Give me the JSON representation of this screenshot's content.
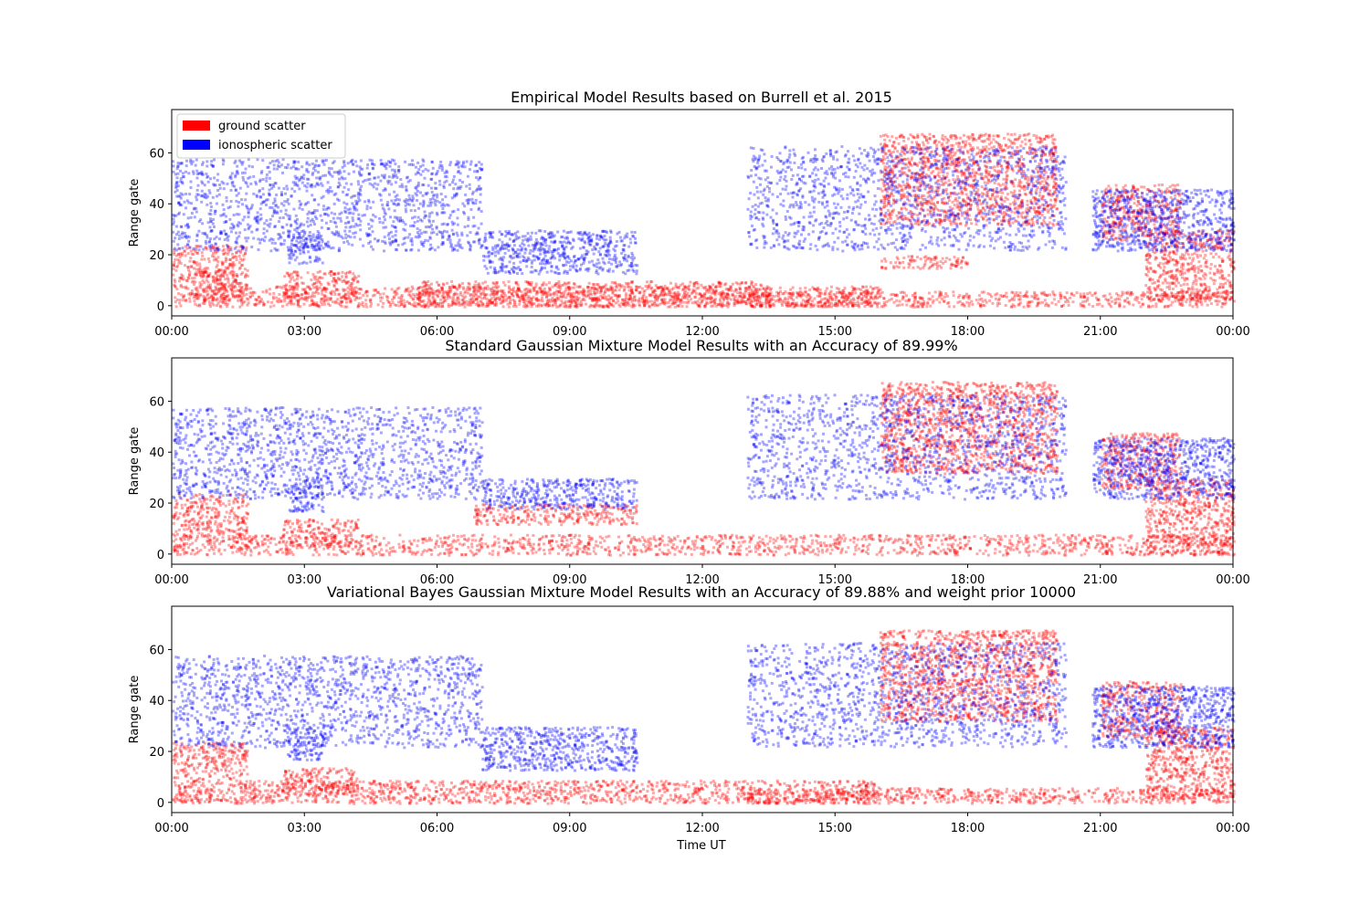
{
  "figure": {
    "xlabel": "Time UT",
    "ylabel": "Range gate",
    "colors": {
      "ground": "#ff0000",
      "ionospheric": "#0000ff"
    },
    "legend": {
      "placement": "top-left",
      "entries": [
        "ground scatter",
        "ionospheric scatter"
      ]
    }
  },
  "chart_data": [
    {
      "type": "scatter",
      "title": "Empirical Model Results based on Burrell et al. 2015",
      "xlabel": "",
      "ylabel": "Range gate",
      "xlim": [
        0,
        24
      ],
      "ylim": [
        -4,
        77
      ],
      "xticks": [
        "00:00",
        "03:00",
        "06:00",
        "09:00",
        "12:00",
        "15:00",
        "18:00",
        "21:00",
        "00:00"
      ],
      "yticks": [
        "0",
        "20",
        "40",
        "60"
      ],
      "legend": [
        "ground scatter",
        "ionospheric scatter"
      ],
      "series": [
        {
          "name": "ground scatter",
          "color": "#ff0000",
          "regions": [
            {
              "x": [
                0.0,
                1.7
              ],
              "y": [
                0,
                24
              ]
            },
            {
              "x": [
                0.5,
                1.5
              ],
              "y": [
                2,
                14
              ]
            },
            {
              "x": [
                2.5,
                4.2
              ],
              "y": [
                3,
                14
              ]
            },
            {
              "x": [
                1.5,
                16.0
              ],
              "y": [
                0,
                8
              ]
            },
            {
              "x": [
                5.5,
                13.5
              ],
              "y": [
                0,
                10
              ]
            },
            {
              "x": [
                13.0,
                24.0
              ],
              "y": [
                0,
                6
              ]
            },
            {
              "x": [
                16.0,
                20.0
              ],
              "y": [
                32,
                68
              ]
            },
            {
              "x": [
                16.0,
                18.0
              ],
              "y": [
                15,
                20
              ]
            },
            {
              "x": [
                21.0,
                22.8
              ],
              "y": [
                26,
                48
              ]
            },
            {
              "x": [
                22.0,
                24.0
              ],
              "y": [
                2,
                30
              ]
            }
          ]
        },
        {
          "name": "ionospheric scatter",
          "color": "#0000ff",
          "regions": [
            {
              "x": [
                0.0,
                7.0
              ],
              "y": [
                22,
                58
              ]
            },
            {
              "x": [
                2.6,
                3.4
              ],
              "y": [
                17,
                30
              ]
            },
            {
              "x": [
                7.0,
                10.5
              ],
              "y": [
                13,
                30
              ]
            },
            {
              "x": [
                13.0,
                20.2
              ],
              "y": [
                22,
                63
              ]
            },
            {
              "x": [
                20.8,
                24.0
              ],
              "y": [
                22,
                46
              ]
            }
          ]
        }
      ]
    },
    {
      "type": "scatter",
      "title": "Standard Gaussian Mixture Model Results with an Accuracy of 89.99%",
      "xlabel": "",
      "ylabel": "Range gate",
      "xlim": [
        0,
        24
      ],
      "ylim": [
        -4,
        77
      ],
      "xticks": [
        "00:00",
        "03:00",
        "06:00",
        "09:00",
        "12:00",
        "15:00",
        "18:00",
        "21:00",
        "00:00"
      ],
      "yticks": [
        "0",
        "20",
        "40",
        "60"
      ],
      "series": [
        {
          "name": "ground scatter",
          "color": "#ff0000",
          "regions": [
            {
              "x": [
                0.0,
                1.7
              ],
              "y": [
                0,
                24
              ]
            },
            {
              "x": [
                2.5,
                4.2
              ],
              "y": [
                3,
                14
              ]
            },
            {
              "x": [
                1.5,
                24.0
              ],
              "y": [
                0,
                8
              ]
            },
            {
              "x": [
                6.8,
                10.5
              ],
              "y": [
                12,
                20
              ]
            },
            {
              "x": [
                16.0,
                20.0
              ],
              "y": [
                32,
                68
              ]
            },
            {
              "x": [
                21.0,
                22.8
              ],
              "y": [
                26,
                48
              ]
            },
            {
              "x": [
                22.0,
                24.0
              ],
              "y": [
                0,
                30
              ]
            }
          ]
        },
        {
          "name": "ionospheric scatter",
          "color": "#0000ff",
          "regions": [
            {
              "x": [
                0.0,
                7.0
              ],
              "y": [
                22,
                58
              ]
            },
            {
              "x": [
                2.6,
                3.4
              ],
              "y": [
                17,
                30
              ]
            },
            {
              "x": [
                7.0,
                10.5
              ],
              "y": [
                18,
                30
              ]
            },
            {
              "x": [
                13.0,
                20.2
              ],
              "y": [
                22,
                63
              ]
            },
            {
              "x": [
                20.8,
                24.0
              ],
              "y": [
                22,
                46
              ]
            }
          ]
        }
      ]
    },
    {
      "type": "scatter",
      "title": "Variational Bayes Gaussian Mixture Model Results with an Accuracy of 89.88% and weight prior 10000",
      "xlabel": "Time UT",
      "ylabel": "Range gate",
      "xlim": [
        0,
        24
      ],
      "ylim": [
        -4,
        77
      ],
      "xticks": [
        "00:00",
        "03:00",
        "06:00",
        "09:00",
        "12:00",
        "15:00",
        "18:00",
        "21:00",
        "00:00"
      ],
      "yticks": [
        "0",
        "20",
        "40",
        "60"
      ],
      "series": [
        {
          "name": "ground scatter",
          "color": "#ff0000",
          "regions": [
            {
              "x": [
                0.0,
                1.7
              ],
              "y": [
                0,
                24
              ]
            },
            {
              "x": [
                2.5,
                4.2
              ],
              "y": [
                3,
                14
              ]
            },
            {
              "x": [
                1.5,
                16.0
              ],
              "y": [
                0,
                9
              ]
            },
            {
              "x": [
                13.0,
                24.0
              ],
              "y": [
                0,
                6
              ]
            },
            {
              "x": [
                16.0,
                20.0
              ],
              "y": [
                32,
                68
              ]
            },
            {
              "x": [
                21.0,
                22.8
              ],
              "y": [
                26,
                48
              ]
            },
            {
              "x": [
                22.0,
                24.0
              ],
              "y": [
                2,
                30
              ]
            }
          ]
        },
        {
          "name": "ionospheric scatter",
          "color": "#0000ff",
          "regions": [
            {
              "x": [
                0.0,
                7.0
              ],
              "y": [
                22,
                58
              ]
            },
            {
              "x": [
                2.6,
                3.4
              ],
              "y": [
                17,
                30
              ]
            },
            {
              "x": [
                7.0,
                10.5
              ],
              "y": [
                13,
                30
              ]
            },
            {
              "x": [
                13.0,
                20.2
              ],
              "y": [
                22,
                63
              ]
            },
            {
              "x": [
                20.8,
                24.0
              ],
              "y": [
                22,
                46
              ]
            }
          ]
        }
      ]
    }
  ]
}
